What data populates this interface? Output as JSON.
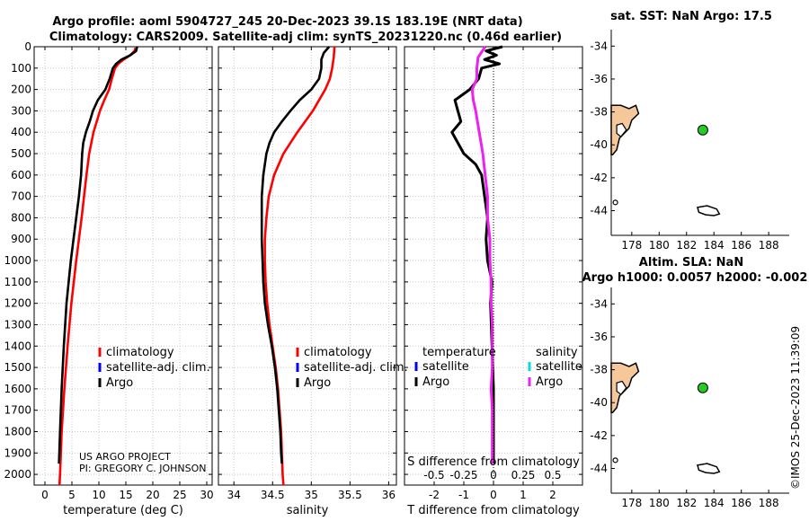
{
  "title": {
    "line1": "Argo profile: aoml 5904727_245 20-Dec-2023 39.1S 183.19E (NRT data)",
    "line2": "Climatology: CARS2009. Satellite-adj clim: synTS_20231220.nc (0.46d earlier)"
  },
  "credit": {
    "line1": "US ARGO PROJECT",
    "line2": "PI: GREGORY C. JOHNSON"
  },
  "timestamp": "©IMOS 25-Dec-2023 11:39:09",
  "colors": {
    "argo": "#000000",
    "climatology": "#ff0000",
    "satellite": "#0000ff",
    "diff_temp": "#000000",
    "diff_sat": "#00dddd",
    "diff_sal": "#ee22ee",
    "land": "#f6c79a",
    "marker": "#22cc22"
  },
  "legend_profiles": [
    "climatology",
    "satellite-adj. clim.",
    "Argo"
  ],
  "legend_diff": {
    "temp_title": "temperature",
    "sal_title": "salinity",
    "temp_items": [
      "satellite",
      "Argo"
    ],
    "sal_items": [
      "satellite",
      "Argo"
    ]
  },
  "depth_ticks": [
    0,
    100,
    200,
    300,
    400,
    500,
    600,
    700,
    800,
    900,
    1000,
    1100,
    1200,
    1300,
    1400,
    1500,
    1600,
    1700,
    1800,
    1900,
    2000
  ],
  "chart_data": [
    {
      "name": "temperature",
      "type": "line",
      "xlabel": "temperature (deg C)",
      "xlim": [
        -2,
        31
      ],
      "ylim": [
        2050,
        0
      ],
      "xticks": [
        0,
        5,
        10,
        15,
        20,
        25,
        30
      ],
      "series": [
        {
          "name": "climatology",
          "color": "red",
          "depth": [
            5,
            20,
            40,
            60,
            80,
            100,
            150,
            200,
            250,
            300,
            400,
            500,
            600,
            800,
            1000,
            1200,
            1400,
            1600,
            1800,
            2000,
            2050
          ],
          "values": [
            16.8,
            16.6,
            15.8,
            14.6,
            13.6,
            13.0,
            12.4,
            11.9,
            11.0,
            10.2,
            9.0,
            8.2,
            7.7,
            6.8,
            5.8,
            4.9,
            4.2,
            3.6,
            3.1,
            2.8,
            2.7
          ]
        },
        {
          "name": "Argo",
          "color": "black",
          "depth": [
            0,
            20,
            40,
            60,
            80,
            100,
            150,
            200,
            250,
            300,
            350,
            400,
            450,
            500,
            600,
            700,
            800,
            900,
            1000,
            1200,
            1400,
            1600,
            1800,
            1950
          ],
          "values": [
            17.1,
            16.9,
            15.8,
            14.2,
            13.2,
            12.6,
            12.0,
            11.2,
            9.8,
            8.9,
            8.3,
            7.6,
            7.1,
            6.9,
            6.7,
            6.3,
            5.8,
            5.3,
            4.8,
            4.0,
            3.5,
            3.1,
            2.8,
            2.6
          ]
        }
      ]
    },
    {
      "name": "salinity",
      "type": "line",
      "xlabel": "salinity",
      "xlim": [
        33.8,
        36.1
      ],
      "ylim": [
        2050,
        0
      ],
      "xticks": [
        34,
        34.5,
        35,
        35.5,
        36
      ],
      "xtick_labels": [
        "34",
        "34.5",
        "35",
        "35.5",
        "36"
      ],
      "series": [
        {
          "name": "climatology",
          "color": "red",
          "depth": [
            0,
            50,
            100,
            150,
            200,
            300,
            400,
            500,
            600,
            700,
            800,
            900,
            1000,
            1100,
            1200,
            1300,
            1400,
            1500,
            1600,
            1700,
            1800,
            1900,
            2000,
            2050
          ],
          "values": [
            35.3,
            35.29,
            35.27,
            35.24,
            35.18,
            35.02,
            34.82,
            34.64,
            34.52,
            34.45,
            34.42,
            34.4,
            34.4,
            34.41,
            34.43,
            34.46,
            34.5,
            34.54,
            34.57,
            34.59,
            34.61,
            34.62,
            34.63,
            34.64
          ]
        },
        {
          "name": "Argo",
          "color": "black",
          "depth": [
            0,
            30,
            60,
            100,
            150,
            200,
            250,
            300,
            350,
            400,
            450,
            500,
            600,
            700,
            800,
            900,
            1000,
            1100,
            1200,
            1300,
            1400,
            1500,
            1600,
            1700,
            1800,
            1900,
            1950
          ],
          "values": [
            35.23,
            35.16,
            35.13,
            35.13,
            35.1,
            35.0,
            34.85,
            34.73,
            34.62,
            34.52,
            34.46,
            34.42,
            34.38,
            34.36,
            34.36,
            34.36,
            34.37,
            34.38,
            34.4,
            34.44,
            34.49,
            34.53,
            34.56,
            34.58,
            34.6,
            34.61,
            34.62
          ]
        }
      ]
    },
    {
      "name": "difference",
      "type": "line",
      "xlabel": "T difference from climatology",
      "xlabel_top": "S difference from climatology",
      "xlim": [
        -3,
        3
      ],
      "ylim": [
        2050,
        0
      ],
      "xticks": [
        -2,
        -1,
        0,
        1,
        2
      ],
      "sal_ticks": [
        -0.5,
        -0.25,
        0,
        0.25,
        0.5
      ],
      "sal_tick_labels": [
        "-0.5",
        "-0.25",
        "0",
        "0.25",
        "0.5"
      ],
      "sal_scale_t_per_s": 4,
      "series": [
        {
          "name": "temperature Argo",
          "color": "black",
          "depth": [
            0,
            20,
            40,
            60,
            80,
            100,
            150,
            200,
            250,
            300,
            350,
            400,
            450,
            500,
            550,
            600,
            700,
            800,
            900,
            1000,
            1100,
            1200,
            1400,
            1600,
            1800,
            1950
          ],
          "values": [
            0.3,
            -0.25,
            0.1,
            -0.3,
            0.2,
            -0.4,
            -0.5,
            -0.8,
            -1.3,
            -1.2,
            -1.1,
            -1.4,
            -1.2,
            -1.0,
            -0.6,
            -0.4,
            -0.3,
            -0.2,
            -0.25,
            -0.2,
            -0.05,
            -0.1,
            -0.05,
            0,
            0,
            0
          ]
        },
        {
          "name": "salinity Argo",
          "color": "magenta",
          "depth": [
            0,
            50,
            100,
            150,
            200,
            250,
            300,
            400,
            500,
            600,
            700,
            800,
            900,
            1000,
            1100,
            1200,
            1300,
            1400,
            1500,
            1600,
            1700,
            1800,
            1900,
            1950
          ],
          "values": [
            -0.07,
            -0.13,
            -0.14,
            -0.14,
            -0.18,
            -0.17,
            -0.15,
            -0.12,
            -0.09,
            -0.07,
            -0.05,
            -0.05,
            -0.03,
            -0.03,
            -0.02,
            -0.02,
            -0.01,
            -0.01,
            -0.01,
            -0.02,
            -0.01,
            -0.01,
            -0.01,
            -0.01
          ]
        }
      ]
    },
    {
      "name": "map-sst",
      "type": "scatter",
      "title": "sat. SST: NaN Argo: 17.5",
      "xlim": [
        176.5,
        189.5
      ],
      "ylim": [
        -45.5,
        -33
      ],
      "xticks": [
        178,
        180,
        182,
        184,
        186,
        188
      ],
      "yticks": [
        -34,
        -36,
        -38,
        -40,
        -42,
        -44
      ],
      "points": [
        {
          "lon": 183.19,
          "lat": -39.1,
          "label": "Argo float"
        }
      ]
    },
    {
      "name": "map-sla",
      "type": "scatter",
      "title": "Altim. SLA: NaN",
      "subtitle": "Argo h1000: 0.0057 h2000: -0.002",
      "xlim": [
        176.5,
        189.5
      ],
      "ylim": [
        -45.5,
        -33
      ],
      "xticks": [
        178,
        180,
        182,
        184,
        186,
        188
      ],
      "yticks": [
        -34,
        -36,
        -38,
        -40,
        -42,
        -44
      ],
      "points": [
        {
          "lon": 183.19,
          "lat": -39.1,
          "label": "Argo float"
        }
      ]
    }
  ]
}
